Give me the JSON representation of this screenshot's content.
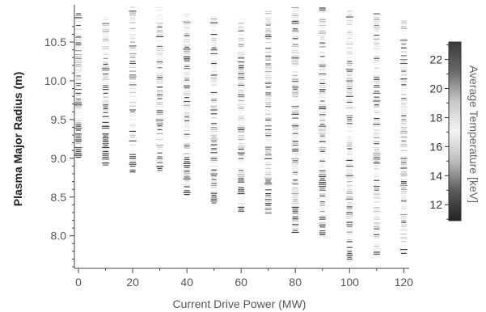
{
  "chart_data": {
    "type": "scatter",
    "xlabel": "Current Drive Power (MW)",
    "ylabel": "Plasma Major Radius (m)",
    "xlim": [
      -1.5,
      122
    ],
    "ylim": [
      7.58,
      10.98
    ],
    "x_ticks": [
      0,
      20,
      40,
      60,
      80,
      100,
      120
    ],
    "x_tick_labels": [
      "0",
      "20",
      "40",
      "60",
      "80",
      "100",
      "120"
    ],
    "y_ticks": [
      8.0,
      8.5,
      9.0,
      9.5,
      10.0,
      10.5
    ],
    "y_tick_labels": [
      "8.0",
      "8.5",
      "9.0",
      "9.5",
      "10.0",
      "10.5"
    ],
    "colorbar": {
      "title": "Average Temperature [keV]",
      "range": [
        10.9,
        23.2
      ],
      "ticks": [
        12,
        14,
        16,
        18,
        20,
        22
      ],
      "tick_labels": [
        "12",
        "14",
        "16",
        "18",
        "20",
        "22"
      ],
      "colormap": [
        "#222222",
        "#5a5a5a",
        "#bdbdbd",
        "#f4f4f4",
        "#c8c8c8",
        "#6a6a6a",
        "#3a3a3a"
      ]
    },
    "series": [
      {
        "x": 0,
        "r_min": 9.02,
        "r_max": 10.87,
        "dark_below": 9.55
      },
      {
        "x": 10,
        "r_min": 8.92,
        "r_max": 10.82,
        "dark_below": 9.45
      },
      {
        "x": 20,
        "r_min": 8.83,
        "r_max": 10.97,
        "dark_below": 9.3
      },
      {
        "x": 30,
        "r_min": 8.8,
        "r_max": 10.95,
        "dark_below": 9.15
      },
      {
        "x": 40,
        "r_min": 8.54,
        "r_max": 10.9,
        "dark_below": 9.0
      },
      {
        "x": 50,
        "r_min": 8.43,
        "r_max": 10.86,
        "dark_below": 8.9
      },
      {
        "x": 60,
        "r_min": 8.3,
        "r_max": 10.8,
        "dark_below": 8.8
      },
      {
        "x": 70,
        "r_min": 8.3,
        "r_max": 10.9,
        "dark_below": 8.75
      },
      {
        "x": 80,
        "r_min": 8.05,
        "r_max": 10.97,
        "dark_below": 8.45
      },
      {
        "x": 90,
        "r_min": 7.97,
        "r_max": 10.95,
        "dark_below": 8.25
      },
      {
        "x": 100,
        "r_min": 7.68,
        "r_max": 10.92,
        "dark_below": 7.95
      },
      {
        "x": 110,
        "r_min": 7.72,
        "r_max": 10.87,
        "dark_below": 7.85
      },
      {
        "x": 120,
        "r_min": 7.78,
        "r_max": 10.82,
        "dark_below": 7.85
      }
    ],
    "r_step": 0.025,
    "grid": false
  }
}
